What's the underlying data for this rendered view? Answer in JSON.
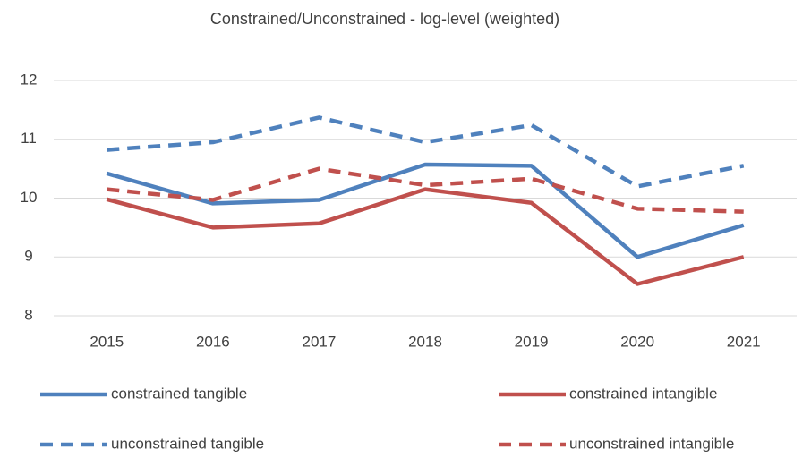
{
  "chart_data": {
    "type": "line",
    "title": "Constrained/Unconstrained - log-level (weighted)",
    "categories": [
      "2015",
      "2016",
      "2017",
      "2018",
      "2019",
      "2020",
      "2021"
    ],
    "series": [
      {
        "name": "constrained tangible",
        "color": "#4f81bd",
        "dashed": false,
        "values": [
          10.42,
          9.91,
          9.97,
          10.57,
          10.55,
          9.0,
          9.54
        ]
      },
      {
        "name": "constrained intangible",
        "color": "#c0504d",
        "dashed": false,
        "values": [
          9.98,
          9.5,
          9.57,
          10.15,
          9.92,
          8.54,
          9.0
        ]
      },
      {
        "name": "unconstrained tangible",
        "color": "#4f81bd",
        "dashed": true,
        "values": [
          10.82,
          10.95,
          11.37,
          10.95,
          11.24,
          10.2,
          10.55
        ]
      },
      {
        "name": "unconstrained intangible",
        "color": "#c0504d",
        "dashed": true,
        "values": [
          10.15,
          9.97,
          10.5,
          10.22,
          10.33,
          9.82,
          9.77
        ]
      }
    ],
    "ylim": [
      8,
      12
    ],
    "yticks": [
      8,
      9,
      10,
      11,
      12
    ],
    "grid": true,
    "legend": "bottom"
  }
}
